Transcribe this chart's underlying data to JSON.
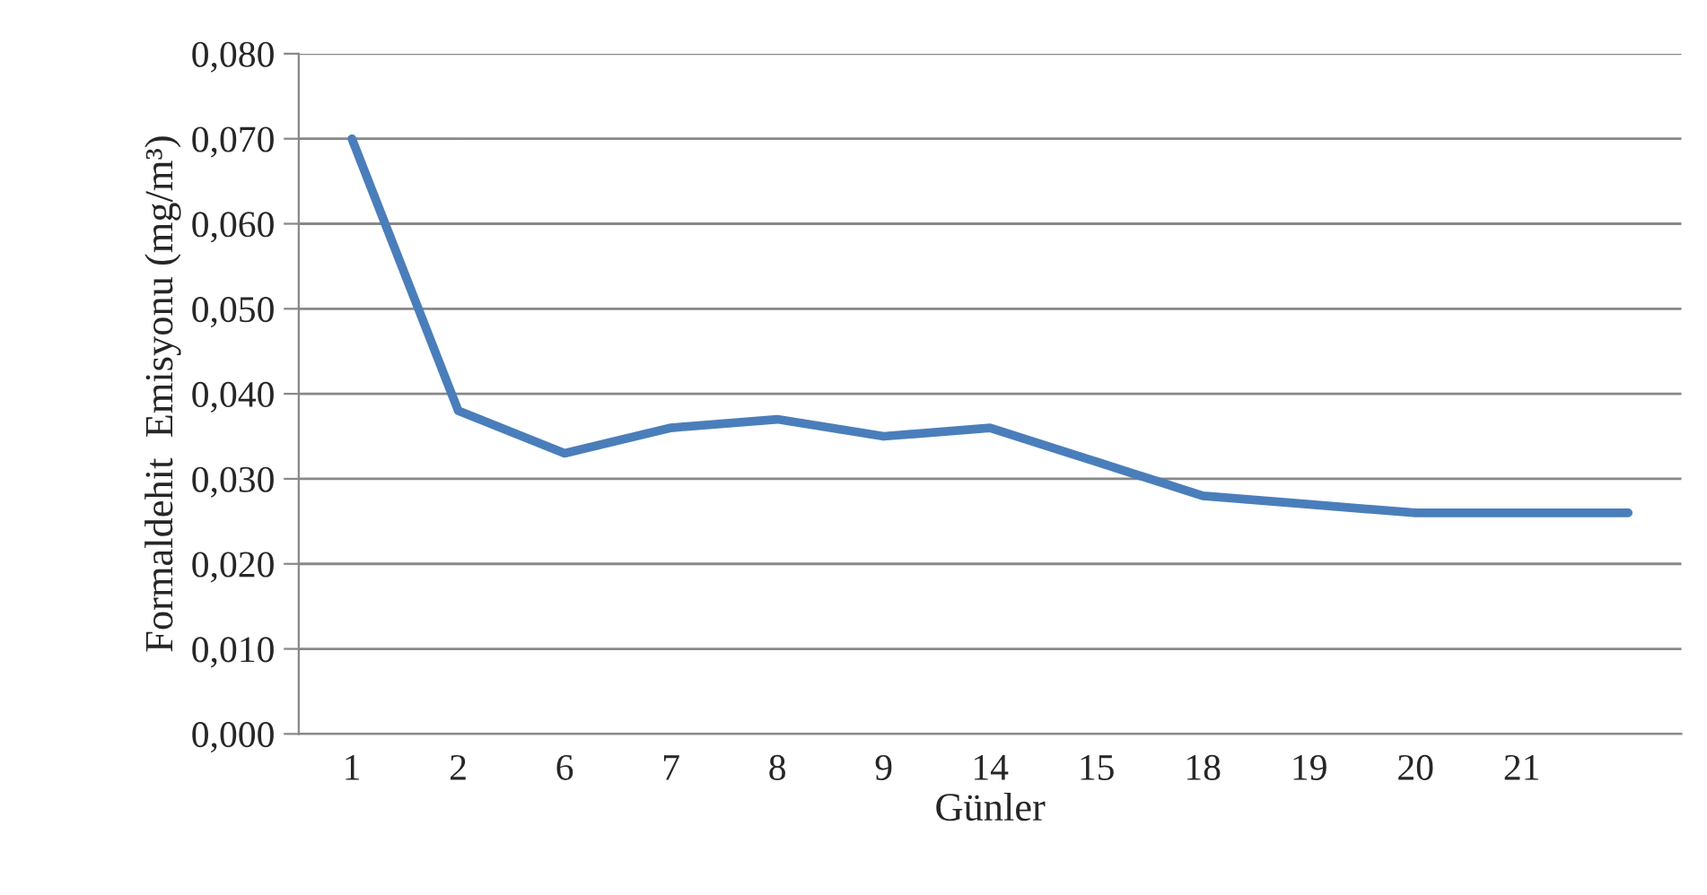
{
  "chart_data": {
    "type": "line",
    "xlabel": "Günler",
    "ylabel": "Formaldehit  Emisyonu (mg/m³)",
    "categories": [
      "1",
      "2",
      "6",
      "7",
      "8",
      "9",
      "14",
      "15",
      "18",
      "19",
      "20",
      "21",
      null
    ],
    "series": [
      {
        "color": "#4a7ebb",
        "values": [
          0.07,
          0.038,
          0.033,
          0.036,
          0.037,
          0.035,
          0.036,
          0.032,
          0.028,
          0.027,
          0.026,
          0.026,
          0.026
        ]
      }
    ],
    "ylim": [
      0,
      0.08
    ],
    "yticks": [
      {
        "value": 0,
        "label": "0,000"
      },
      {
        "value": 0.01,
        "label": "0,010"
      },
      {
        "value": 0.02,
        "label": "0,020"
      },
      {
        "value": 0.03,
        "label": "0,030"
      },
      {
        "value": 0.04,
        "label": "0,040"
      },
      {
        "value": 0.05,
        "label": "0,050"
      },
      {
        "value": 0.06,
        "label": "0,060"
      },
      {
        "value": 0.07,
        "label": "0,070"
      },
      {
        "value": 0.08,
        "label": "0,080"
      }
    ],
    "grid": "y",
    "legend": false,
    "marker": "none",
    "line_style": "solid"
  }
}
